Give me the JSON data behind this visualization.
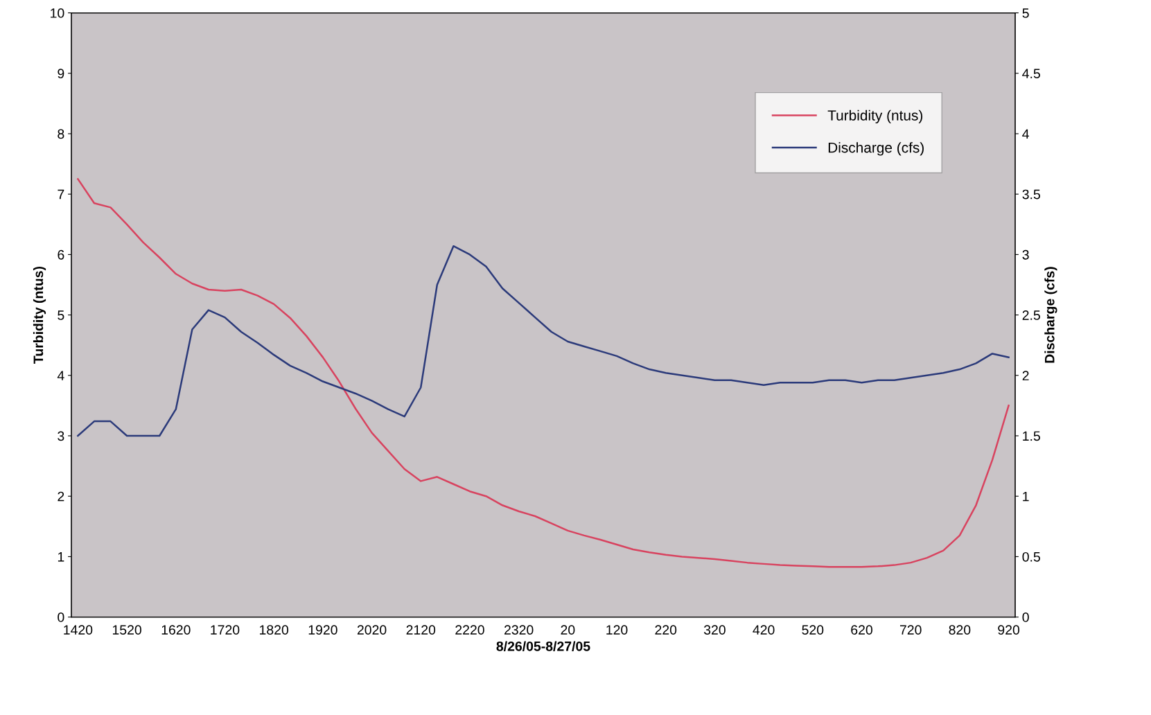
{
  "chart_data": {
    "type": "line",
    "xlabel": "8/26/05-8/27/05",
    "ylabel": "Turbidity (ntus)",
    "y2label": "Discharge (cfs)",
    "categories": [
      "1420",
      null,
      null,
      "1520",
      null,
      null,
      "1620",
      null,
      null,
      "1720",
      null,
      null,
      "1820",
      null,
      null,
      "1920",
      null,
      null,
      "2020",
      null,
      null,
      "2120",
      null,
      null,
      "2220",
      null,
      null,
      "2320",
      null,
      null,
      "20",
      null,
      null,
      "120",
      null,
      null,
      "220",
      null,
      null,
      "320",
      null,
      null,
      "420",
      null,
      null,
      "520",
      null,
      null,
      "620",
      null,
      null,
      "720",
      null,
      null,
      "820",
      null,
      null,
      "920"
    ],
    "series": [
      {
        "name": "Turbidity (ntus)",
        "color": "#d8435f",
        "values": [
          7.25,
          6.85,
          6.78,
          6.5,
          6.2,
          5.95,
          5.68,
          5.52,
          5.42,
          5.4,
          5.42,
          5.32,
          5.18,
          4.95,
          4.65,
          4.3,
          3.9,
          3.45,
          3.05,
          2.75,
          2.45,
          2.25,
          2.32,
          2.2,
          2.08,
          2.0,
          1.85,
          1.75,
          1.67,
          1.55,
          1.43,
          1.35,
          1.28,
          1.2,
          1.12,
          1.07,
          1.03,
          1.0,
          0.98,
          0.96,
          0.93,
          0.9,
          0.88,
          0.86,
          0.85,
          0.84,
          0.83,
          0.83,
          0.83,
          0.84,
          0.86,
          0.9,
          0.98,
          1.1,
          1.35,
          1.85,
          2.6,
          3.5
        ]
      },
      {
        "name": "Discharge (cfs)",
        "color": "#2b3a7a",
        "axis": "y2",
        "values": [
          1.5,
          1.62,
          1.62,
          1.5,
          1.5,
          1.5,
          1.72,
          2.38,
          2.54,
          2.48,
          2.36,
          2.27,
          2.17,
          2.08,
          2.02,
          1.95,
          1.9,
          1.85,
          1.79,
          1.72,
          1.66,
          1.9,
          2.75,
          3.07,
          3.0,
          2.9,
          2.72,
          2.6,
          2.48,
          2.36,
          2.28,
          2.24,
          2.2,
          2.16,
          2.1,
          2.05,
          2.02,
          2.0,
          1.98,
          1.96,
          1.96,
          1.94,
          1.92,
          1.94,
          1.94,
          1.94,
          1.96,
          1.96,
          1.94,
          1.96,
          1.96,
          1.98,
          2.0,
          2.02,
          2.05,
          2.1,
          2.18,
          2.15
        ]
      }
    ],
    "ylim": [
      0,
      10
    ],
    "yticks": [
      0,
      1,
      2,
      3,
      4,
      5,
      6,
      7,
      8,
      9,
      10
    ],
    "y2lim": [
      0,
      5
    ],
    "y2ticks": [
      0,
      0.5,
      1,
      1.5,
      2,
      2.5,
      3,
      3.5,
      4,
      4.5,
      5
    ],
    "grid": false,
    "legend": "top right",
    "marker": "none",
    "line_style": "solid"
  }
}
